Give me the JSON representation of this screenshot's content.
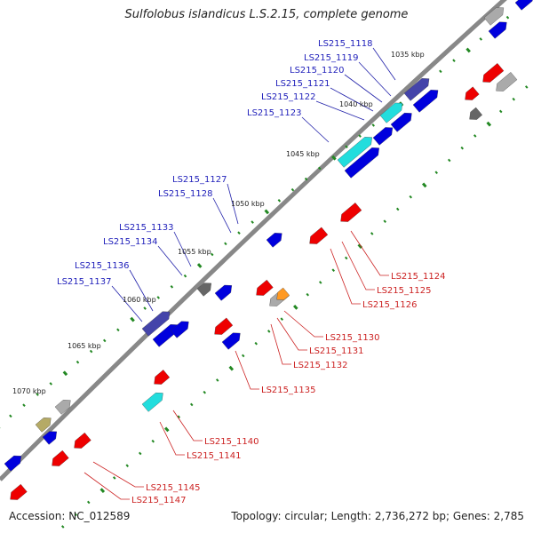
{
  "title": "Sulfolobus islandicus L.S.2.15, complete genome",
  "accession": "Accession: NC_012589",
  "summary": "Topology: circular; Length: 2,736,272 bp; Genes: 2,785",
  "colors": {
    "backbone": "#888888",
    "forward_gene": "#0000dd",
    "reverse_gene": "#ee0000",
    "forward_label": "#2222bb",
    "reverse_label": "#cc2222",
    "tick": "#228822",
    "highlight_cyan": "#22dddd",
    "highlight_indigo": "#4444aa",
    "gray_gene": "#aaaaaa",
    "olive_gene": "#b5aa66",
    "orange_gene": "#ff9922",
    "magenta_gene": "#dd22aa"
  },
  "kbp_labels": [
    "1035 kbp",
    "1040 kbp",
    "1045 kbp",
    "1050 kbp",
    "1055 kbp",
    "1060 kbp",
    "1065 kbp",
    "1070 kbp"
  ],
  "forward_labels": [
    "LS215_1118",
    "LS215_1119",
    "LS215_1120",
    "LS215_1121",
    "LS215_1122",
    "LS215_1123",
    "LS215_1127",
    "LS215_1128",
    "LS215_1133",
    "LS215_1134",
    "LS215_1136",
    "LS215_1137"
  ],
  "reverse_labels": [
    "LS215_1124",
    "LS215_1125",
    "LS215_1126",
    "LS215_1130",
    "LS215_1131",
    "LS215_1132",
    "LS215_1135",
    "LS215_1140",
    "LS215_1141",
    "LS215_1145",
    "LS215_1147"
  ]
}
